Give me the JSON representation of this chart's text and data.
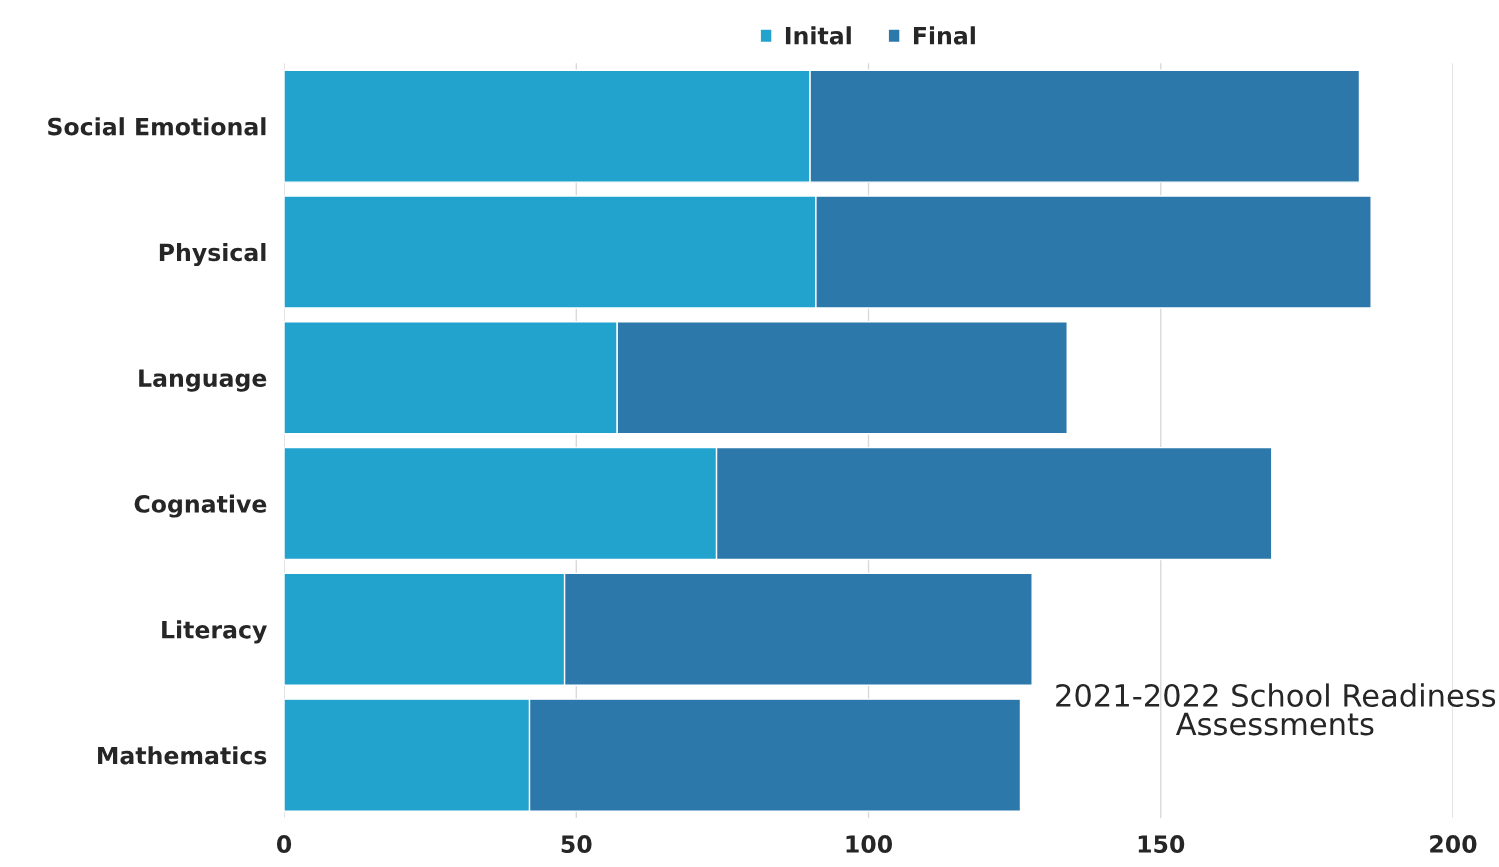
{
  "chart_data": {
    "type": "bar",
    "orientation": "horizontal",
    "stacked": true,
    "title": "2021-2022 School Readiness Assessments",
    "categories": [
      "Social Emotional",
      "Physical",
      "Language",
      "Cognative",
      "Literacy",
      "Mathematics"
    ],
    "series": [
      {
        "name": "Inital",
        "color": "#21a3ce",
        "values": [
          90,
          91,
          57,
          74,
          48,
          42
        ]
      },
      {
        "name": "Final",
        "color": "#2d78ab",
        "values": [
          94,
          95,
          77,
          95,
          80,
          84
        ]
      }
    ],
    "xlim": [
      0,
      200
    ],
    "xticks": [
      0,
      50,
      100,
      150,
      200
    ],
    "grid": "x",
    "legend": "top"
  }
}
